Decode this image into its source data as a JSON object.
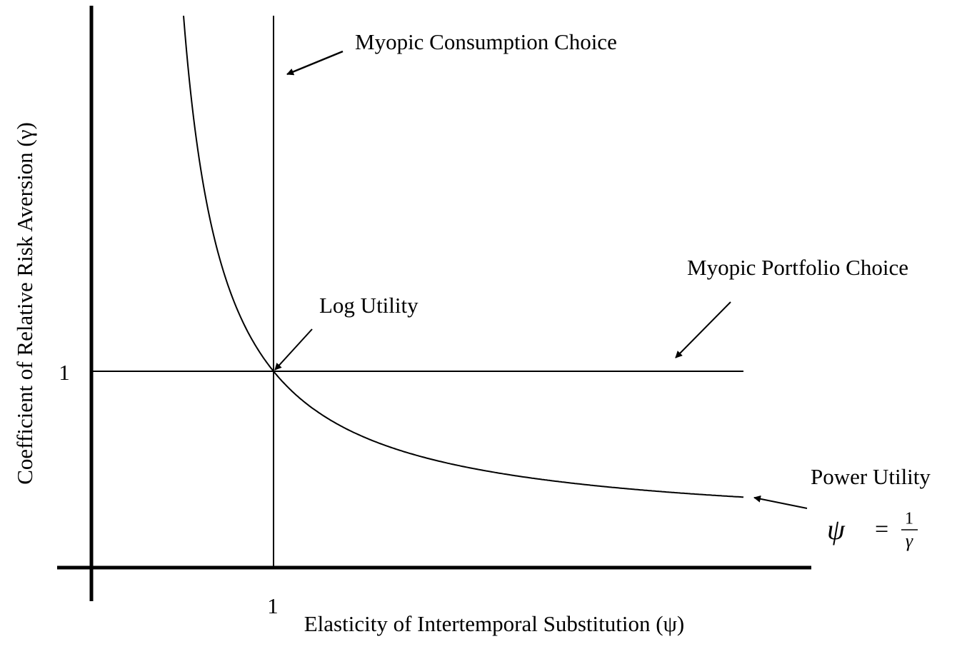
{
  "axes": {
    "x_label": "Elasticity of Intertemporal Substitution (ψ)",
    "y_label": "Coefficient of Relative Risk Aversion (γ)",
    "x_tick": "1",
    "y_tick": "1"
  },
  "annotations": {
    "consumption": "Myopic Consumption Choice",
    "portfolio": "Myopic Portfolio Choice",
    "log": "Log Utility",
    "power": "Power Utility"
  },
  "formula": {
    "lhs": "ψ",
    "equals": "=",
    "numerator": "1",
    "denominator": "γ"
  }
}
